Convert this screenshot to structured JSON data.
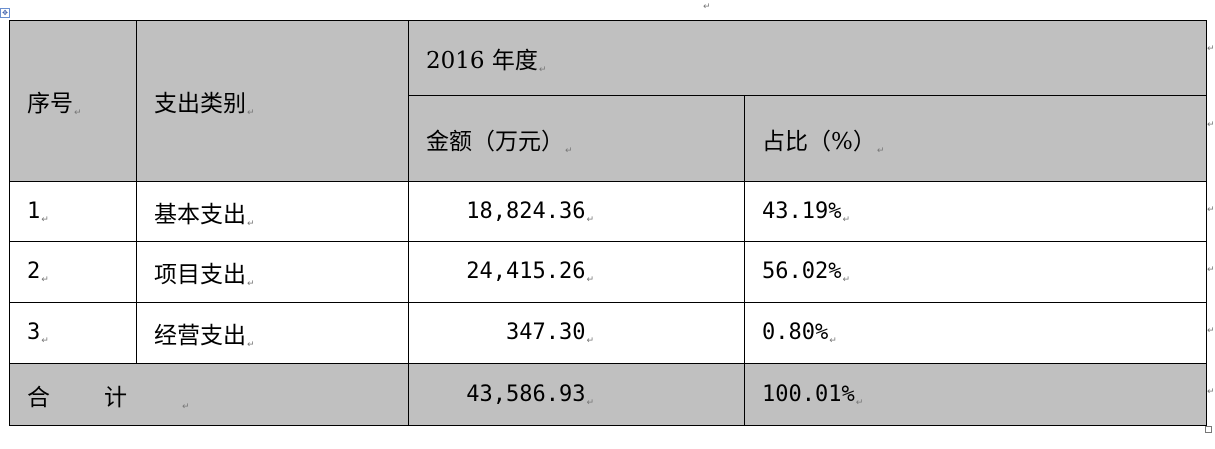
{
  "table": {
    "header": {
      "seq": "序号",
      "category": "支出类别",
      "year": "2016 年度",
      "amount": "金额（万元）",
      "share": "占比（%）"
    },
    "rows": [
      {
        "seq": "1",
        "category": "基本支出",
        "amount": "18,824.36",
        "share": "43.19%"
      },
      {
        "seq": "2",
        "category": "项目支出",
        "amount": "24,415.26",
        "share": "56.02%"
      },
      {
        "seq": "3",
        "category": "经营支出",
        "amount": "347.30",
        "share": "0.80%"
      }
    ],
    "total": {
      "label": "合计",
      "amount": "43,586.93",
      "share": "100.01%"
    }
  },
  "marks": {
    "cell": "↵",
    "anchor": "✥"
  }
}
